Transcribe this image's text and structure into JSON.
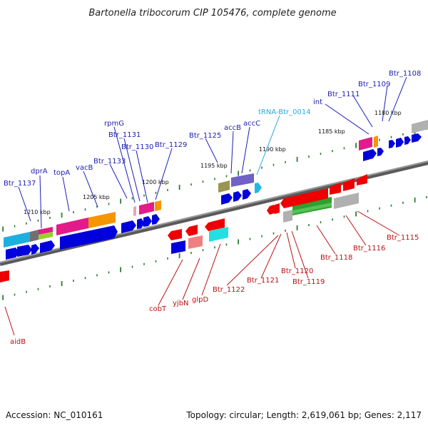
{
  "title": "Bartonella tribocorum CIP 105476, complete genome",
  "footer": {
    "accession": "Accession: NC_010161",
    "summary": "Topology: circular; Length: 2,619,061 bp; Genes: 2,117"
  },
  "ruler_labels": [
    "1180 kbp",
    "1185 kbp",
    "1190 kbp",
    "1195 kbp",
    "1200 kbp",
    "1205 kbp",
    "1210 kbp"
  ],
  "top_gene_labels": [
    "Btr_1108",
    "Btr_1109",
    "Btr_1111",
    "int",
    "tRNA-Btr_0014",
    "accC",
    "accB",
    "Btr_1125",
    "Btr_1129",
    "Btr_1130",
    "Btr_1131",
    "rpmG",
    "Btr_1133",
    "vacB",
    "topA",
    "dprA",
    "Btr_1137"
  ],
  "bottom_gene_labels": [
    "Btr_1115",
    "Btr_1116",
    "Btr_1118",
    "Btr_1119",
    "Btr_1120",
    "Btr_1121",
    "Btr_1122",
    "glpD",
    "yjbN",
    "cobT",
    "aidB"
  ],
  "colors": {
    "backbone": "#808080",
    "tick": "#2e7d32",
    "forward_gene": "#0000dd",
    "reverse_gene": "#ee0000",
    "label_forward": "#1d1db5",
    "label_reverse": "#bb1111",
    "label_trna": "#2aaadd"
  }
}
